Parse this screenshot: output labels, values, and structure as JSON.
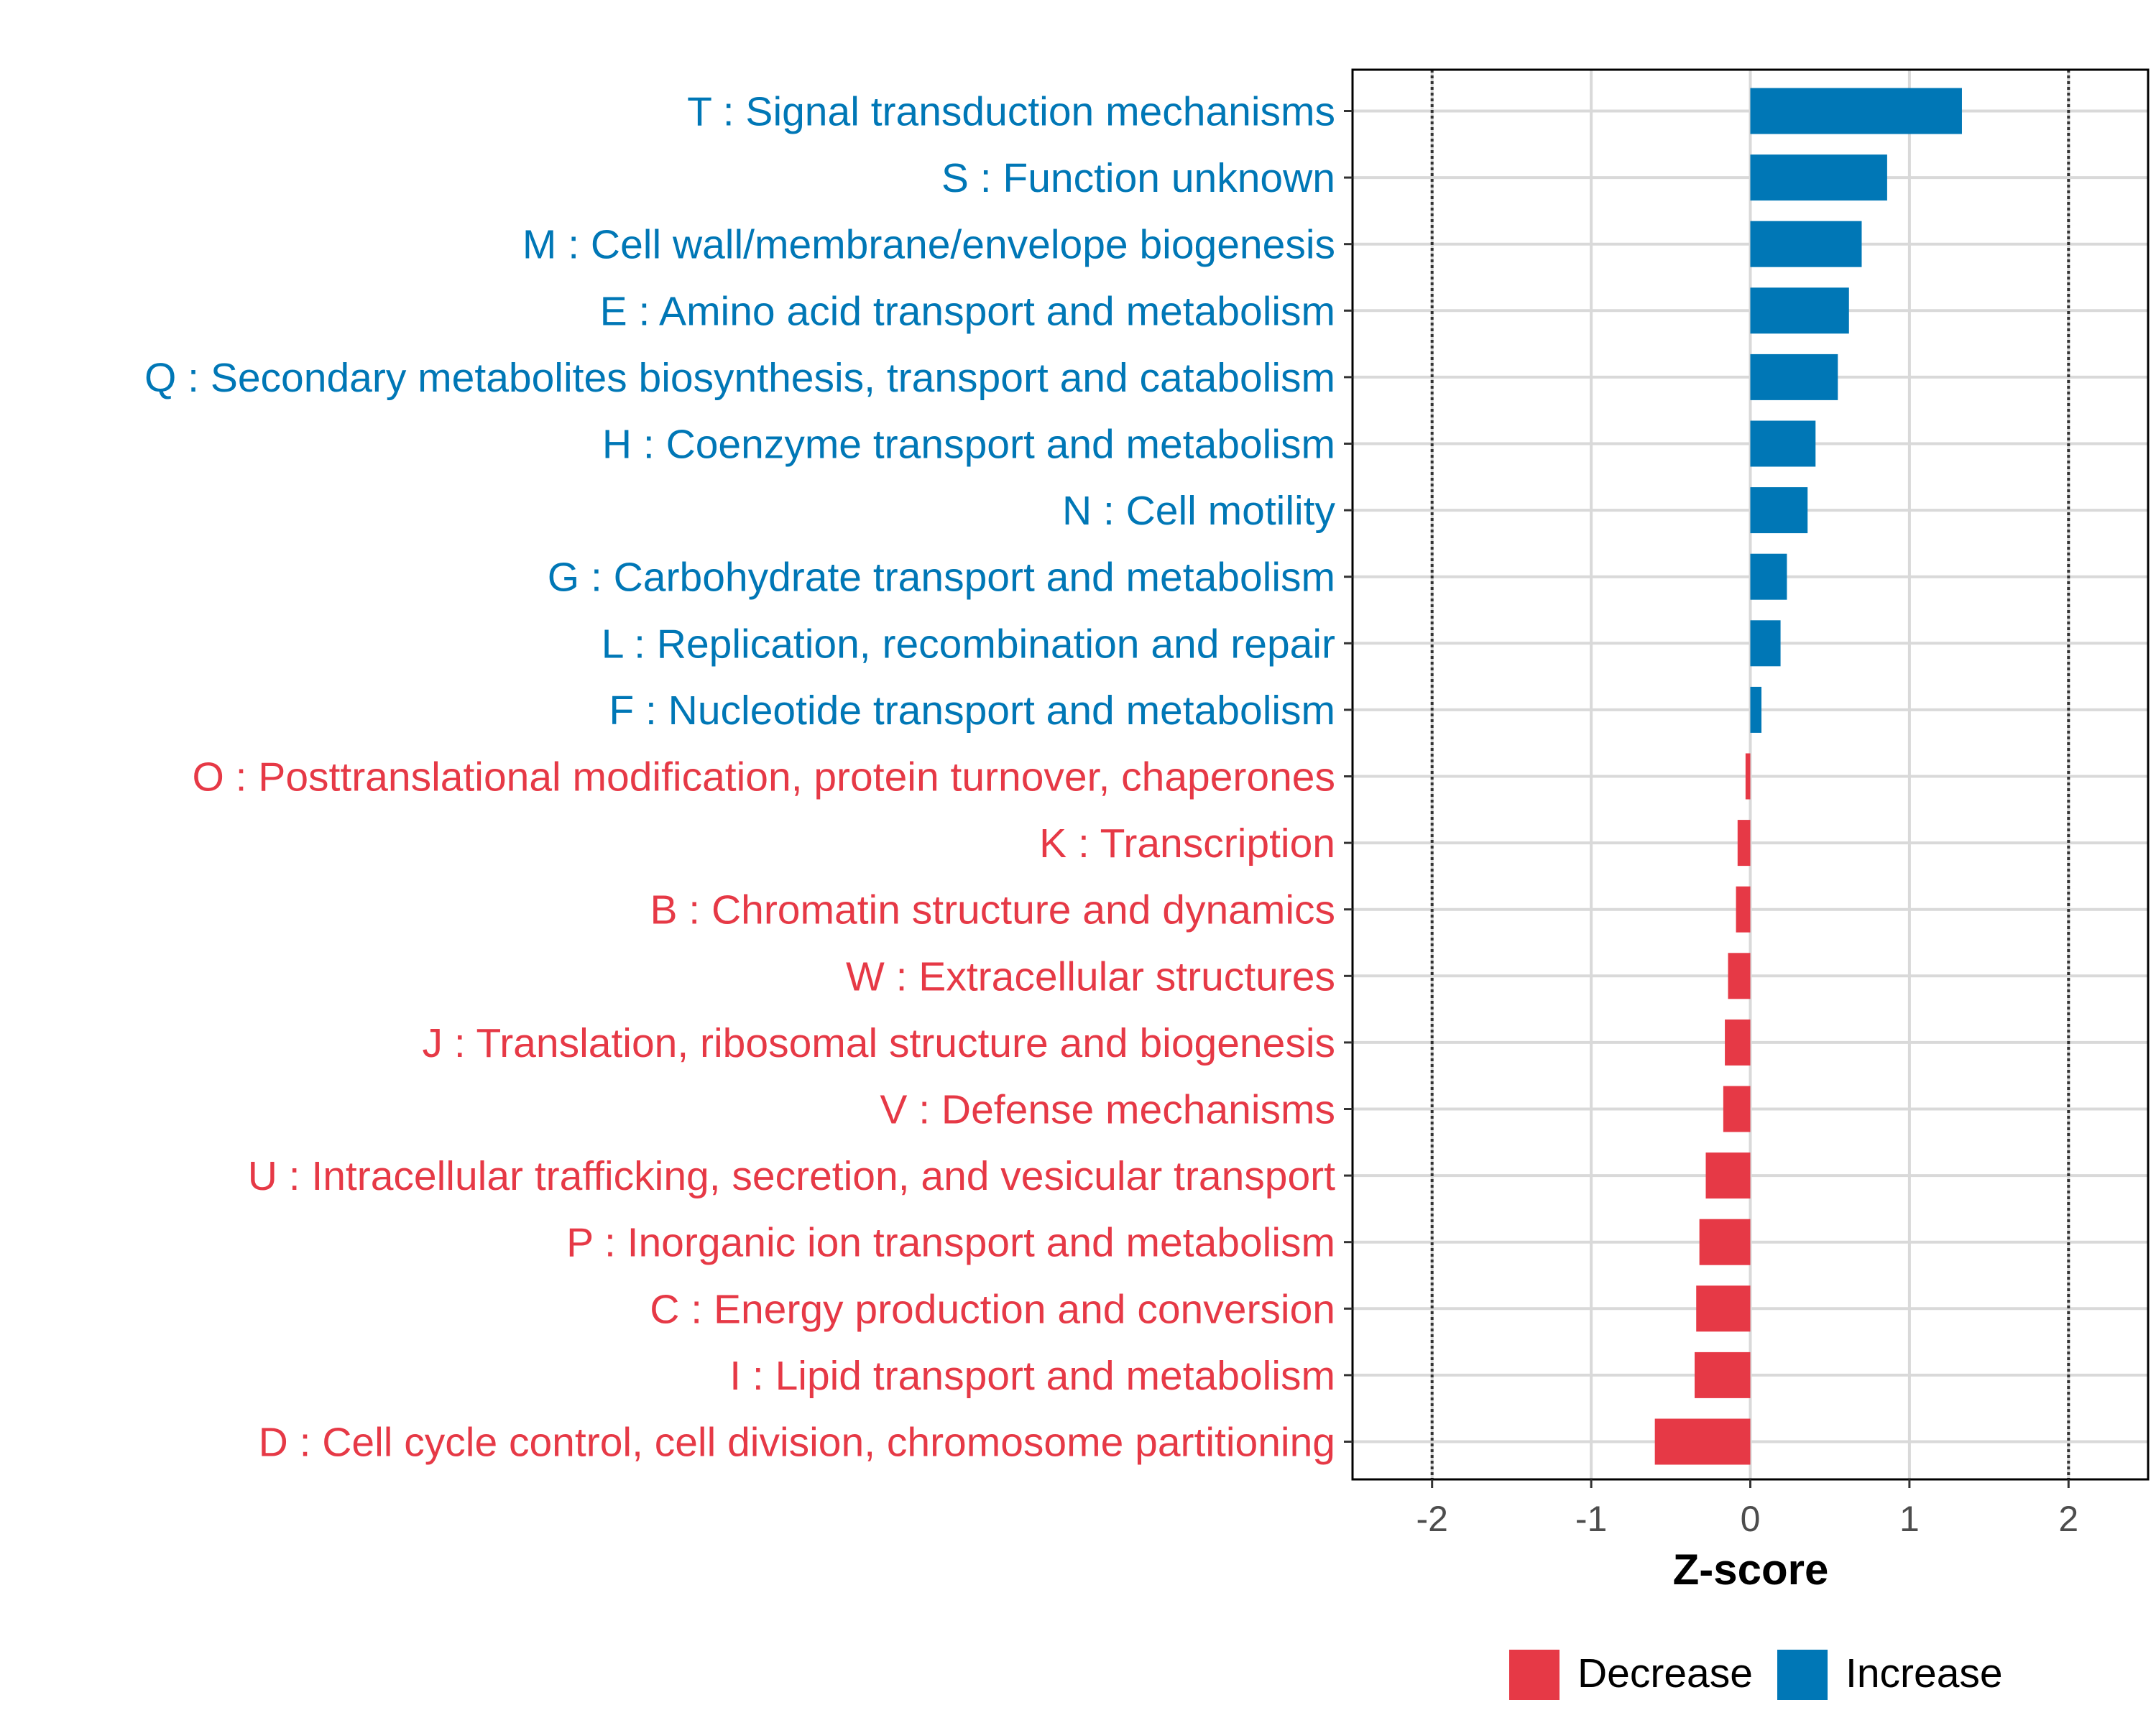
{
  "chart_data": {
    "type": "bar",
    "orientation": "horizontal",
    "title": "",
    "xlabel": "Z-score",
    "ylabel": "",
    "xlim": [
      -2.5,
      2.5
    ],
    "x_ticks": [
      "-2",
      "-1",
      "0",
      "1",
      "2"
    ],
    "x_tick_values": [
      -2,
      -1,
      0,
      1,
      2
    ],
    "reference_lines": [
      -2,
      2
    ],
    "grid": true,
    "legend_position": "bottom",
    "colors": {
      "Decrease": "#E63946",
      "Increase": "#0077B6"
    },
    "legend": [
      {
        "label": "Decrease",
        "color": "#E63946"
      },
      {
        "label": "Increase",
        "color": "#0077B6"
      }
    ],
    "categories": [
      "T : Signal transduction mechanisms",
      "S : Function unknown",
      "M : Cell wall/membrane/envelope biogenesis",
      "E : Amino acid transport and metabolism",
      "Q : Secondary metabolites biosynthesis, transport and catabolism",
      "H : Coenzyme transport and metabolism",
      "N : Cell motility",
      "G : Carbohydrate transport and metabolism",
      "L : Replication, recombination and repair",
      "F : Nucleotide transport and metabolism",
      "O : Posttranslational modification, protein turnover, chaperones",
      "K : Transcription",
      "B : Chromatin structure and dynamics",
      "W : Extracellular structures",
      "J : Translation, ribosomal structure and biogenesis",
      "V : Defense mechanisms",
      "U : Intracellular trafficking, secretion, and vesicular transport",
      "P : Inorganic ion transport and metabolism",
      "C : Energy production and conversion",
      "I : Lipid transport and metabolism",
      "D : Cell cycle control, cell division, chromosome partitioning"
    ],
    "values": [
      1.33,
      0.86,
      0.7,
      0.62,
      0.55,
      0.41,
      0.36,
      0.23,
      0.19,
      0.07,
      -0.03,
      -0.08,
      -0.09,
      -0.14,
      -0.16,
      -0.17,
      -0.28,
      -0.32,
      -0.34,
      -0.35,
      -0.6
    ],
    "groups": [
      "Increase",
      "Increase",
      "Increase",
      "Increase",
      "Increase",
      "Increase",
      "Increase",
      "Increase",
      "Increase",
      "Increase",
      "Decrease",
      "Decrease",
      "Decrease",
      "Decrease",
      "Decrease",
      "Decrease",
      "Decrease",
      "Decrease",
      "Decrease",
      "Decrease",
      "Decrease"
    ]
  }
}
